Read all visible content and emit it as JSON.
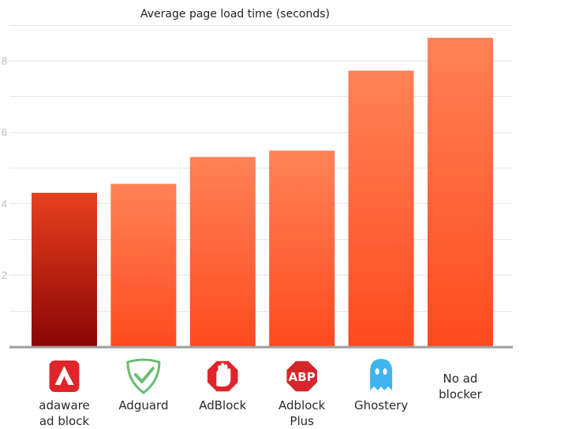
{
  "chart_data": {
    "type": "bar",
    "title": "Average page load time (seconds)",
    "xlabel": "",
    "ylabel": "",
    "ylim": [
      0,
      9.3
    ],
    "grid": true,
    "yticks": [
      2,
      4,
      6,
      8
    ],
    "ytick_labels": [
      "2",
      "4",
      "6",
      "8"
    ],
    "categories": [
      {
        "label_lines": [
          "adaware",
          "ad block"
        ],
        "icon": "adaware-logo-icon"
      },
      {
        "label_lines": [
          "Adguard"
        ],
        "icon": "adguard-shield-icon"
      },
      {
        "label_lines": [
          "AdBlock"
        ],
        "icon": "adblock-hand-icon"
      },
      {
        "label_lines": [
          "Adblock",
          "Plus"
        ],
        "icon": "adblock-plus-abp-icon"
      },
      {
        "label_lines": [
          "Ghostery"
        ],
        "icon": "ghostery-ghost-icon"
      },
      {
        "label_lines": [
          "No ad",
          "blocker"
        ],
        "icon": ""
      }
    ],
    "values": [
      4.3,
      4.55,
      5.3,
      5.48,
      7.72,
      8.64
    ],
    "colors": {
      "highlight_top": "#e8411f",
      "highlight_bottom": "#8a0505",
      "bar_top": "#ff8257",
      "bar_bottom": "#ff4a20"
    },
    "icon_texts": {
      "abp": "ABP"
    },
    "icon_colors": {
      "adaware": "#e0252a",
      "adguard": "#68bc71",
      "adblock": "#e0252a",
      "abp": "#d7262b",
      "ghostery": "#41b3ef"
    }
  }
}
